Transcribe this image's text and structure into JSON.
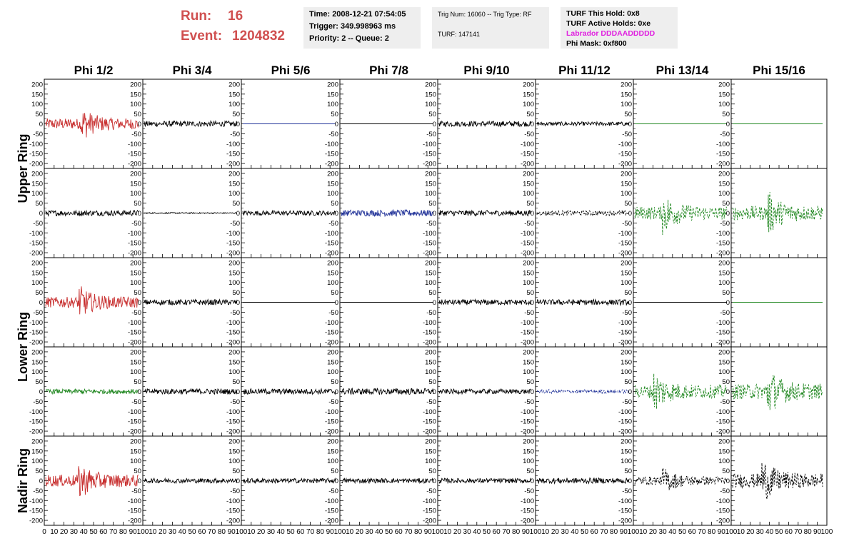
{
  "header": {
    "run_label": "Run:",
    "run_value": "16",
    "event_label": "Event:",
    "event_value": "1204832",
    "time": "Time: 2008-12-21 07:54:05",
    "trigger": "Trigger: 349.998963 ms",
    "priority": "Priority: 2 -- Queue: 2",
    "trig_num": "Trig Num: 16060 -- Trig Type: RF",
    "turf": "TURF: 147141",
    "turf_hold": "TURF This Hold: 0x8",
    "turf_active": "TURF Active Holds: 0xe",
    "labrador": "Labrador DDDAADDDDD",
    "phi_mask": "Phi Mask: 0xf800"
  },
  "colors": {
    "run_text": "#d05050",
    "labrador": "#e020e0",
    "red": "#c83030",
    "green": "#228822",
    "blue": "#223399",
    "black": "#000000"
  },
  "columns": [
    "Phi 1/2",
    "Phi 3/4",
    "Phi 5/6",
    "Phi 7/8",
    "Phi 9/10",
    "Phi 11/12",
    "Phi 13/14",
    "Phi 15/16"
  ],
  "ring_labels": [
    "Upper Ring",
    "Lower Ring",
    "Nadir Ring"
  ],
  "y_ticks": [
    "200",
    "150",
    "100",
    "50",
    "0",
    "-50",
    "-100",
    "-150",
    "-200"
  ],
  "x_ticks_first": [
    "0",
    "10",
    "20",
    "30",
    "40",
    "50",
    "60",
    "70",
    "80",
    "90",
    "100"
  ],
  "x_ticks_rest": [
    "10",
    "20",
    "30",
    "40",
    "50",
    "60",
    "70",
    "80",
    "90",
    "100"
  ],
  "chart_data": {
    "type": "line",
    "description_note": "",
    "xlim": [
      0,
      100
    ],
    "ylim": [
      -225,
      225
    ],
    "rows": [
      {
        "ring": "Upper Ring",
        "traces": [
          {
            "color": "red",
            "amp": 45,
            "style": "solid",
            "burst": 38
          },
          {
            "color": "black",
            "amp": 14,
            "style": "solid"
          },
          {
            "color": "blue",
            "amp": 0,
            "style": "solid"
          },
          {
            "color": "black",
            "amp": 0,
            "style": "solid"
          },
          {
            "color": "black",
            "amp": 14,
            "style": "solid"
          },
          {
            "color": "black",
            "amp": 10,
            "style": "solid"
          },
          {
            "color": "green",
            "amp": 0,
            "style": "solid"
          },
          {
            "color": "green",
            "amp": 0,
            "style": "solid"
          }
        ]
      },
      {
        "ring": "Upper Ring",
        "traces": [
          {
            "color": "black",
            "amp": 14,
            "style": "solid"
          },
          {
            "color": "black",
            "amp": 3,
            "style": "solid"
          },
          {
            "color": "black",
            "amp": 12,
            "style": "solid"
          },
          {
            "color": "blue",
            "amp": 16,
            "style": "solid"
          },
          {
            "color": "black",
            "amp": 14,
            "style": "solid"
          },
          {
            "color": "black",
            "amp": 12,
            "style": "dashed"
          },
          {
            "color": "green",
            "amp": 55,
            "style": "dashed",
            "burst": 30
          },
          {
            "color": "green",
            "amp": 60,
            "style": "dashed",
            "burst": 38
          }
        ]
      },
      {
        "ring": "Lower Ring",
        "traces": [
          {
            "color": "red",
            "amp": 45,
            "style": "solid",
            "burst": 35
          },
          {
            "color": "black",
            "amp": 14,
            "style": "solid"
          },
          {
            "color": "black",
            "amp": 0,
            "style": "solid"
          },
          {
            "color": "black",
            "amp": 0,
            "style": "solid"
          },
          {
            "color": "black",
            "amp": 14,
            "style": "solid"
          },
          {
            "color": "black",
            "amp": 14,
            "style": "solid"
          },
          {
            "color": "black",
            "amp": 0,
            "style": "solid"
          },
          {
            "color": "green",
            "amp": 0,
            "style": "solid"
          }
        ]
      },
      {
        "ring": "Lower Ring",
        "traces": [
          {
            "color": "green",
            "amp": 12,
            "style": "solid"
          },
          {
            "color": "black",
            "amp": 14,
            "style": "solid"
          },
          {
            "color": "black",
            "amp": 14,
            "style": "solid"
          },
          {
            "color": "black",
            "amp": 16,
            "style": "solid"
          },
          {
            "color": "black",
            "amp": 12,
            "style": "solid"
          },
          {
            "color": "blue",
            "amp": 10,
            "style": "dashed"
          },
          {
            "color": "green",
            "amp": 55,
            "style": "dashed",
            "burst": 20
          },
          {
            "color": "green",
            "amp": 65,
            "style": "dashed",
            "burst": 38
          }
        ]
      },
      {
        "ring": "Nadir Ring",
        "traces": [
          {
            "color": "red",
            "amp": 50,
            "style": "solid",
            "burst": 35
          },
          {
            "color": "black",
            "amp": 12,
            "style": "solid"
          },
          {
            "color": "black",
            "amp": 12,
            "style": "solid"
          },
          {
            "color": "black",
            "amp": 12,
            "style": "solid"
          },
          {
            "color": "black",
            "amp": 12,
            "style": "solid"
          },
          {
            "color": "black",
            "amp": 14,
            "style": "solid"
          },
          {
            "color": "black",
            "amp": 35,
            "style": "dashed",
            "burst": 30
          },
          {
            "color": "black",
            "amp": 60,
            "style": "dashed",
            "burst": 32
          }
        ]
      }
    ]
  }
}
